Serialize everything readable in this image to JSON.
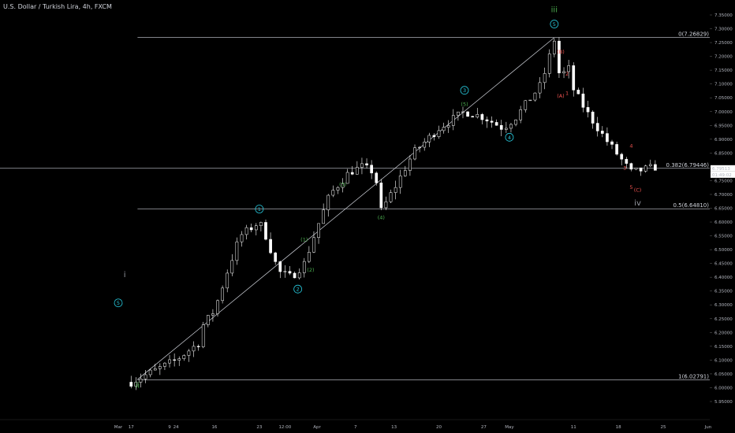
{
  "title": "U.S. Dollar / Turkish Lira, 4h, FXCM",
  "colors": {
    "background": "#000000",
    "candle": "#ffffff",
    "line": "#d1d4dc",
    "cyan": "#26c6da",
    "green": "#4caf50",
    "red": "#ef5350",
    "gray": "#9598a1"
  },
  "chart_data": {
    "type": "candlestick",
    "ylim": [
      5.93,
      7.37
    ],
    "y_ticks": [
      "5.95000",
      "6.00000",
      "6.05000",
      "6.10000",
      "6.15000",
      "6.20000",
      "6.25000",
      "6.30000",
      "6.35000",
      "6.40000",
      "6.45000",
      "6.50000",
      "6.55000",
      "6.60000",
      "6.65000",
      "6.70000",
      "6.75000",
      "6.80000",
      "6.85000",
      "6.90000",
      "6.95000",
      "7.00000",
      "7.05000",
      "7.10000",
      "7.15000",
      "7.20000",
      "7.25000",
      "7.30000",
      "7.35000"
    ],
    "x_ticks": [
      "17",
      "24",
      "Mar",
      "9",
      "16",
      "23",
      "12:00",
      "Apr",
      "7",
      "13",
      "20",
      "27",
      "May",
      "11",
      "18",
      "25",
      "Jun"
    ],
    "price_path": [
      [
        "Feb 17",
        6.02
      ],
      [
        "Feb 24",
        6.1
      ],
      [
        "Feb 28",
        6.17
      ],
      [
        "Mar 2",
        6.25
      ],
      [
        "Mar 3",
        6.22
      ],
      [
        "Mar 4",
        6.05
      ],
      [
        "Mar 9",
        6.1
      ],
      [
        "Mar 12",
        6.16
      ],
      [
        "Mar 16",
        6.28
      ],
      [
        "Mar 18",
        6.42
      ],
      [
        "Mar 20",
        6.55
      ],
      [
        "Mar 23",
        6.6
      ],
      [
        "Mar 24",
        6.55
      ],
      [
        "Mar 26",
        6.42
      ],
      [
        "Mar 28",
        6.4
      ],
      [
        "Mar 30",
        6.45
      ],
      [
        "Apr 1",
        6.58
      ],
      [
        "Apr 3",
        6.7
      ],
      [
        "Apr 6",
        6.78
      ],
      [
        "Apr 8",
        6.8
      ],
      [
        "Apr 10",
        6.78
      ],
      [
        "Apr 11",
        6.64
      ],
      [
        "Apr 13",
        6.72
      ],
      [
        "Apr 16",
        6.85
      ],
      [
        "Apr 20",
        6.94
      ],
      [
        "Apr 24",
        7.0
      ],
      [
        "Apr 27",
        6.98
      ],
      [
        "Apr 30",
        6.94
      ],
      [
        "May 2",
        6.98
      ],
      [
        "May 6",
        7.1
      ],
      [
        "May 8",
        7.26
      ],
      [
        "May 9",
        7.1
      ],
      [
        "May 10",
        7.18
      ],
      [
        "May 11",
        7.08
      ],
      [
        "May 13",
        7.0
      ],
      [
        "May 16",
        6.9
      ],
      [
        "May 18",
        6.84
      ],
      [
        "May 20",
        6.78
      ],
      [
        "May 24",
        6.8
      ]
    ],
    "fib_levels": [
      {
        "label": "0(7.26829)",
        "value": 7.26829
      },
      {
        "label": "0.382(6.79446)",
        "value": 6.79446
      },
      {
        "label": "0.5(6.64810)",
        "value": 6.6481
      },
      {
        "label": "1(6.02791)",
        "value": 6.02791
      }
    ],
    "current_price_labels": [
      "6.79513",
      "01:49:02"
    ],
    "wave_labels": [
      {
        "text": "i",
        "color": "gray",
        "x": "Mar 2",
        "y": 6.4
      },
      {
        "text": "5",
        "color": "cyan",
        "circled": true,
        "x": "Mar 1",
        "y": 6.3
      },
      {
        "text": "ii",
        "color": "green",
        "x": "Mar 4",
        "y": 6.0
      },
      {
        "text": "1",
        "color": "cyan",
        "circled": true,
        "x": "Mar 23",
        "y": 6.64
      },
      {
        "text": "2",
        "color": "cyan",
        "circled": true,
        "x": "Mar 29",
        "y": 6.35
      },
      {
        "text": "(1)",
        "color": "green",
        "x": "Mar 30",
        "y": 6.53
      },
      {
        "text": "(2)",
        "color": "green",
        "x": "Mar 31",
        "y": 6.42
      },
      {
        "text": "(3)",
        "color": "green",
        "x": "Apr 5",
        "y": 6.73
      },
      {
        "text": "(4)",
        "color": "green",
        "x": "Apr 11",
        "y": 6.61
      },
      {
        "text": "3",
        "color": "cyan",
        "circled": true,
        "x": "Apr 24",
        "y": 7.07
      },
      {
        "text": "(5)",
        "color": "green",
        "x": "Apr 24",
        "y": 7.02
      },
      {
        "text": "4",
        "color": "cyan",
        "circled": true,
        "x": "May 1",
        "y": 6.9
      },
      {
        "text": "5",
        "color": "cyan",
        "circled": true,
        "x": "May 8",
        "y": 7.31
      },
      {
        "text": "iii",
        "color": "green",
        "x": "May 8",
        "y": 7.36
      },
      {
        "text": "(B)",
        "color": "red",
        "x": "May 9",
        "y": 7.21
      },
      {
        "text": "(A)",
        "color": "red",
        "x": "May 9",
        "y": 7.05
      },
      {
        "text": "1",
        "color": "red",
        "x": "May 10",
        "y": 7.06
      },
      {
        "text": "2",
        "color": "red",
        "x": "May 10",
        "y": 7.13
      },
      {
        "text": "3",
        "color": "red",
        "x": "May 19",
        "y": 6.79
      },
      {
        "text": "4",
        "color": "red",
        "x": "May 20",
        "y": 6.87
      },
      {
        "text": "5",
        "color": "red",
        "x": "May 20",
        "y": 6.72
      },
      {
        "text": "(C)",
        "color": "red",
        "x": "May 21",
        "y": 6.71
      },
      {
        "text": "iv",
        "color": "gray",
        "x": "May 21",
        "y": 6.66
      }
    ]
  }
}
